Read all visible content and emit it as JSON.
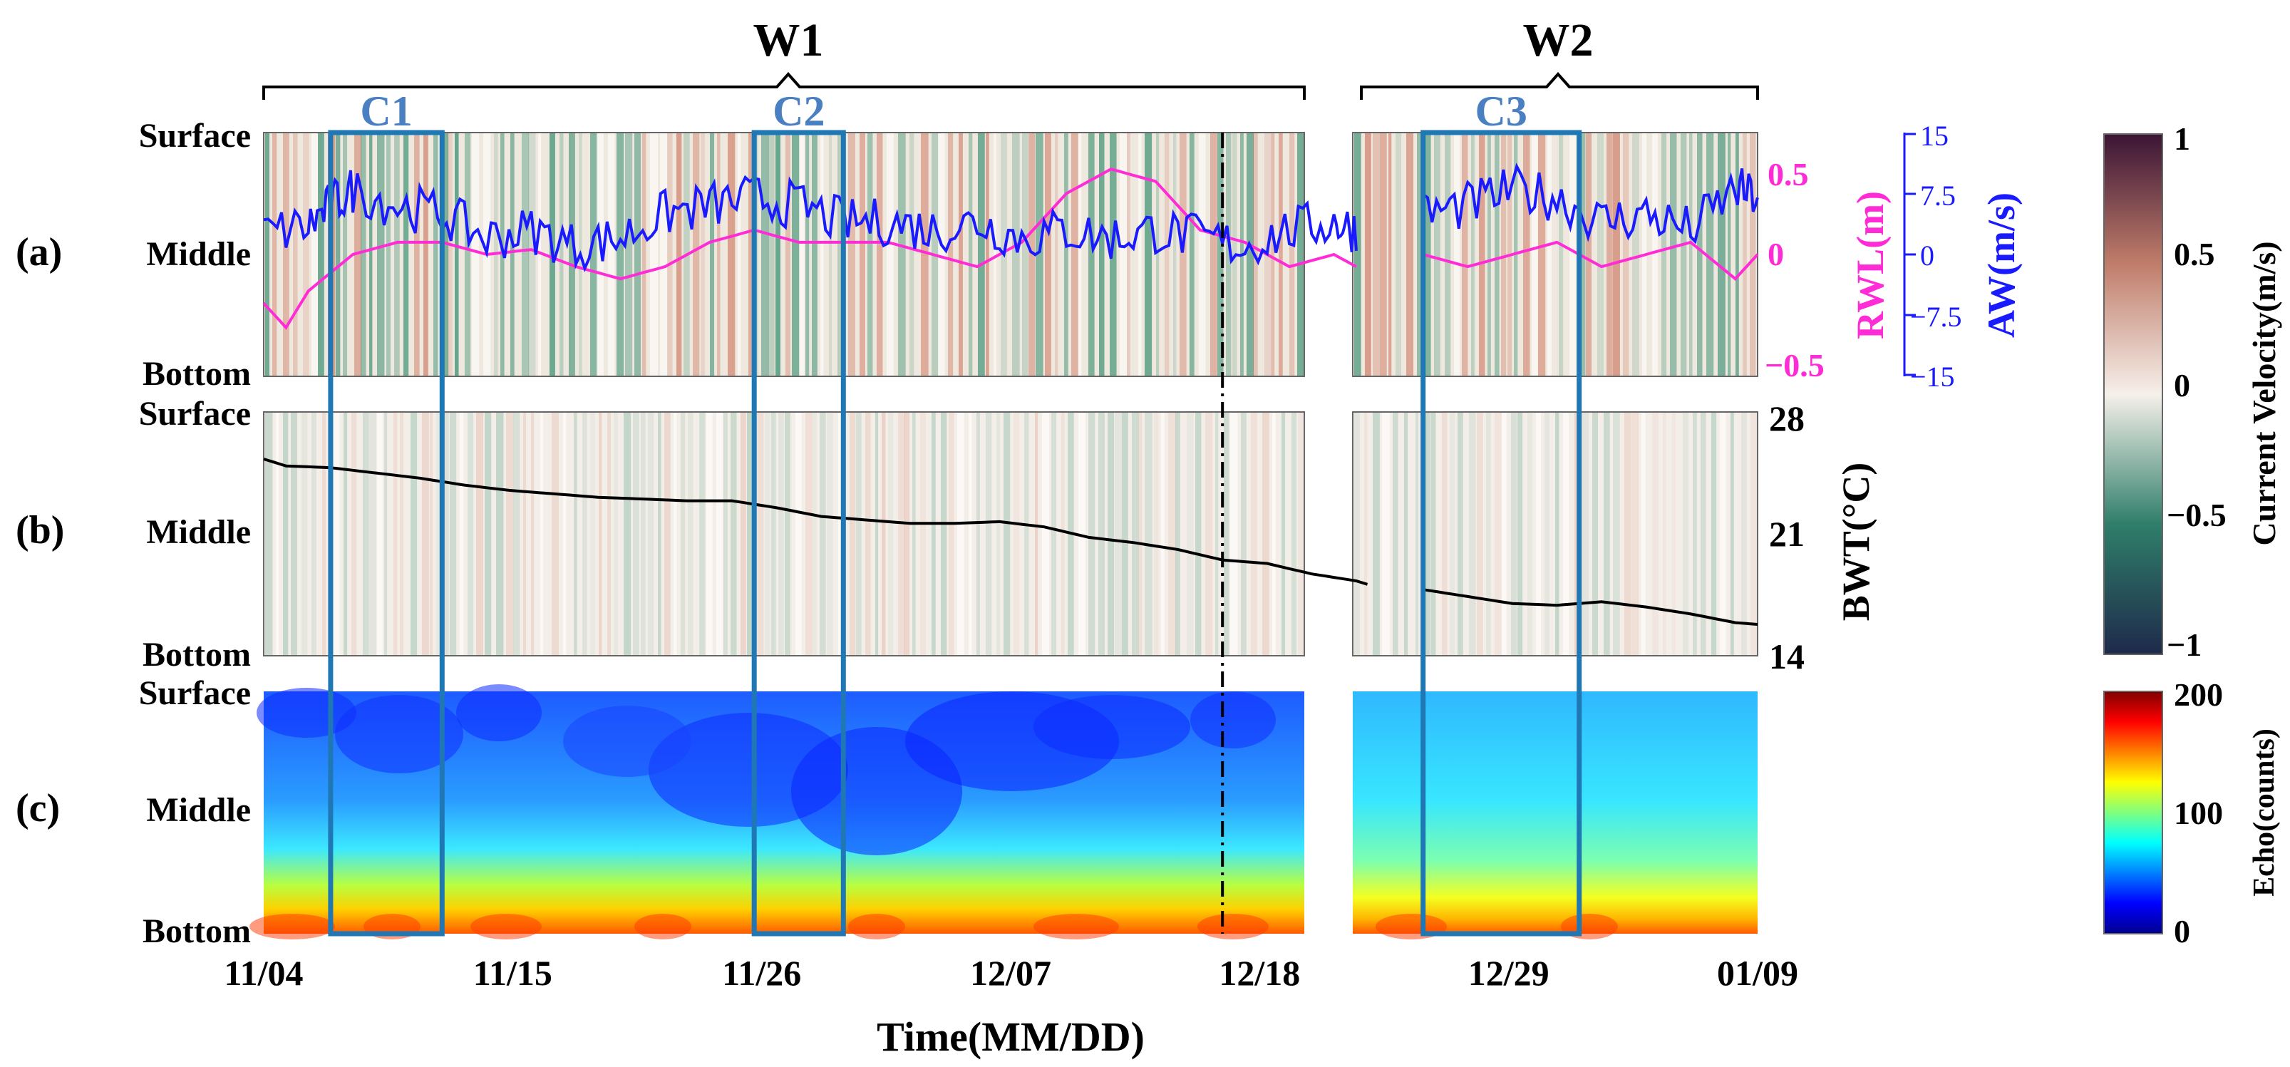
{
  "figure": {
    "groups": [
      {
        "id": "W1",
        "label": "W1"
      },
      {
        "id": "W2",
        "label": "W2"
      }
    ],
    "cases": [
      {
        "id": "C1",
        "label": "C1",
        "start": 3,
        "end": 8
      },
      {
        "id": "C2",
        "label": "C2",
        "start": 22,
        "end": 26
      },
      {
        "id": "C3",
        "label": "C3",
        "start": 52,
        "end": 59
      }
    ],
    "event_line_day": 43,
    "colors": {
      "rwl": "#ff2bd6",
      "aw": "#1a1aff",
      "bwt": "#000000",
      "case_box": "#1f77b4",
      "case_label": "#4a7fc1"
    }
  },
  "chart_data": [
    {
      "id": "a",
      "type": "heatmap",
      "panel_label": "(a)",
      "ylabels": [
        "Surface",
        "Middle",
        "Bottom"
      ],
      "variable": "Current Velocity",
      "series": [
        {
          "name": "RWL(m)",
          "axis_label": "RWL(m)",
          "ylim": [
            -0.5,
            0.5
          ],
          "ticks": [
            "0.5",
            "0",
            "−0.5"
          ],
          "points": [
            [
              0,
              -0.2
            ],
            [
              1,
              -0.3
            ],
            [
              2,
              -0.15
            ],
            [
              4,
              0.0
            ],
            [
              6,
              0.05
            ],
            [
              8,
              0.05
            ],
            [
              10,
              0.0
            ],
            [
              12,
              0.02
            ],
            [
              14,
              -0.05
            ],
            [
              16,
              -0.1
            ],
            [
              18,
              -0.05
            ],
            [
              20,
              0.05
            ],
            [
              22,
              0.1
            ],
            [
              24,
              0.05
            ],
            [
              26,
              0.05
            ],
            [
              28,
              0.05
            ],
            [
              30,
              0.0
            ],
            [
              32,
              -0.05
            ],
            [
              34,
              0.05
            ],
            [
              36,
              0.25
            ],
            [
              38,
              0.35
            ],
            [
              40,
              0.3
            ],
            [
              42,
              0.1
            ],
            [
              44,
              0.05
            ],
            [
              46,
              -0.05
            ],
            [
              48,
              0.0
            ],
            [
              49,
              -0.05
            ],
            [
              52,
              0.0
            ],
            [
              54,
              -0.05
            ],
            [
              56,
              0.0
            ],
            [
              58,
              0.05
            ],
            [
              60,
              -0.05
            ],
            [
              62,
              0.0
            ],
            [
              64,
              0.05
            ],
            [
              66,
              -0.1
            ],
            [
              67,
              0.0
            ]
          ]
        },
        {
          "name": "AW(m/s)",
          "axis_label": "AW(m/s)",
          "ylim": [
            -15,
            15
          ],
          "ticks": [
            "15",
            "7.5",
            "0",
            "−7.5",
            "−15"
          ],
          "points": [
            [
              0,
              2.5
            ],
            [
              2,
              3.5
            ],
            [
              3,
              6
            ],
            [
              4,
              8
            ],
            [
              6,
              6
            ],
            [
              8,
              5
            ],
            [
              10,
              2
            ],
            [
              12,
              3
            ],
            [
              14,
              1
            ],
            [
              16,
              2
            ],
            [
              18,
              5
            ],
            [
              20,
              6
            ],
            [
              22,
              7
            ],
            [
              24,
              6
            ],
            [
              26,
              4
            ],
            [
              28,
              4
            ],
            [
              30,
              3
            ],
            [
              32,
              4
            ],
            [
              34,
              2
            ],
            [
              36,
              3
            ],
            [
              38,
              2
            ],
            [
              40,
              3
            ],
            [
              42,
              2
            ],
            [
              44,
              1
            ],
            [
              46,
              3
            ],
            [
              48,
              4
            ],
            [
              49,
              3
            ],
            [
              52,
              5
            ],
            [
              54,
              6
            ],
            [
              56,
              8
            ],
            [
              58,
              7
            ],
            [
              60,
              4
            ],
            [
              62,
              5
            ],
            [
              64,
              3
            ],
            [
              66,
              8
            ],
            [
              67,
              7
            ]
          ]
        }
      ]
    },
    {
      "id": "b",
      "type": "line",
      "panel_label": "(b)",
      "ylabels": [
        "Surface",
        "Middle",
        "Bottom"
      ],
      "ylabel": "BWT(°C)",
      "ylim": [
        14,
        28
      ],
      "yticks": [
        "28",
        "21",
        "14"
      ],
      "series": [
        {
          "name": "BWT",
          "points": [
            [
              0,
              25.3
            ],
            [
              1,
              24.9
            ],
            [
              3,
              24.8
            ],
            [
              5,
              24.5
            ],
            [
              7,
              24.2
            ],
            [
              9,
              23.8
            ],
            [
              11,
              23.5
            ],
            [
              13,
              23.3
            ],
            [
              15,
              23.1
            ],
            [
              17,
              23.0
            ],
            [
              19,
              22.9
            ],
            [
              21,
              22.9
            ],
            [
              23,
              22.5
            ],
            [
              25,
              22.0
            ],
            [
              27,
              21.8
            ],
            [
              29,
              21.6
            ],
            [
              31,
              21.6
            ],
            [
              33,
              21.7
            ],
            [
              35,
              21.4
            ],
            [
              37,
              20.8
            ],
            [
              39,
              20.5
            ],
            [
              41,
              20.1
            ],
            [
              43,
              19.5
            ],
            [
              45,
              19.3
            ],
            [
              47,
              18.7
            ],
            [
              49,
              18.3
            ],
            [
              49.5,
              18.1
            ],
            [
              50,
              18.3
            ],
            [
              52,
              17.8
            ],
            [
              54,
              17.4
            ],
            [
              56,
              17.0
            ],
            [
              58,
              16.9
            ],
            [
              60,
              17.1
            ],
            [
              62,
              16.8
            ],
            [
              64,
              16.4
            ],
            [
              66,
              15.9
            ],
            [
              67,
              15.8
            ]
          ]
        }
      ]
    },
    {
      "id": "c",
      "type": "heatmap",
      "panel_label": "(c)",
      "ylabels": [
        "Surface",
        "Middle",
        "Bottom"
      ],
      "variable": "Echo(counts)",
      "xlabel": "Time(MM/DD)",
      "xticks": [
        "11/04",
        "11/15",
        "11/26",
        "12/07",
        "12/18",
        "12/29",
        "01/09"
      ]
    }
  ],
  "colorbars": [
    {
      "id": "velocity",
      "label": "Current Velocity(m/s)",
      "range": [
        -1,
        1
      ],
      "ticks": [
        "1",
        "0.5",
        "0",
        "−0.5",
        "−1"
      ]
    },
    {
      "id": "echo",
      "label": "Echo(counts)",
      "range": [
        0,
        200
      ],
      "ticks": [
        "200",
        "100",
        "0"
      ]
    }
  ]
}
